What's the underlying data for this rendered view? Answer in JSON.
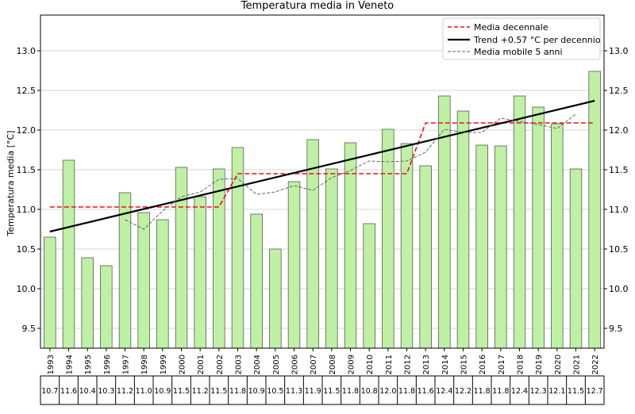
{
  "chart_data": {
    "type": "bar",
    "title": "Temperatura media in Veneto",
    "ylabel": "Temperatura media [°C]",
    "xlabel": "",
    "ylim": [
      9.25,
      13.45
    ],
    "yticks": [
      9.5,
      10.0,
      10.5,
      11.0,
      11.5,
      12.0,
      12.5,
      13.0
    ],
    "grid": "horizontal",
    "legend_position": "top-right",
    "categories": [
      "1993",
      "1994",
      "1995",
      "1996",
      "1997",
      "1998",
      "1999",
      "2000",
      "2001",
      "2002",
      "2003",
      "2004",
      "2005",
      "2006",
      "2007",
      "2008",
      "2009",
      "2010",
      "2011",
      "2012",
      "2013",
      "2014",
      "2015",
      "2016",
      "2017",
      "2018",
      "2019",
      "2020",
      "2021",
      "2022"
    ],
    "values": [
      10.65,
      11.62,
      10.39,
      10.29,
      11.21,
      10.96,
      10.87,
      11.53,
      11.16,
      11.51,
      11.78,
      10.94,
      10.5,
      11.35,
      11.88,
      11.51,
      11.84,
      10.82,
      12.01,
      11.83,
      11.55,
      12.43,
      12.24,
      11.81,
      11.8,
      12.43,
      12.29,
      12.08,
      11.51,
      12.74
    ],
    "table_labels": [
      "10.7",
      "11.6",
      "10.4",
      "10.3",
      "11.2",
      "11.0",
      "10.9",
      "11.5",
      "11.2",
      "11.5",
      "11.8",
      "10.9",
      "10.5",
      "11.3",
      "11.9",
      "11.5",
      "11.8",
      "10.8",
      "12.0",
      "11.8",
      "11.6",
      "12.4",
      "12.2",
      "11.8",
      "11.8",
      "12.4",
      "12.3",
      "12.1",
      "11.5",
      "12.7"
    ],
    "bar_color": "#bff0a4",
    "bar_edge_color": "#5a5a5a",
    "series": [
      {
        "name": "Media decennale",
        "style": "dashed",
        "color": "#ee1111",
        "points": [
          [
            "1993",
            11.03
          ],
          [
            "2002",
            11.03
          ],
          [
            "2003",
            11.45
          ],
          [
            "2012",
            11.45
          ],
          [
            "2013",
            12.09
          ],
          [
            "2022",
            12.09
          ]
        ]
      },
      {
        "name": "Trend +0.57 °C per decennio",
        "style": "solid",
        "color": "#000000",
        "points": [
          [
            "1993",
            10.72
          ],
          [
            "2022",
            12.37
          ]
        ]
      },
      {
        "name": "Media mobile 5 anni",
        "style": "dashed",
        "color": "#666666",
        "points": [
          [
            "1997",
            10.87
          ],
          [
            "1998",
            10.75
          ],
          [
            "1999",
            10.98
          ],
          [
            "2000",
            11.16
          ],
          [
            "2001",
            11.22
          ],
          [
            "2002",
            11.38
          ],
          [
            "2003",
            11.39
          ],
          [
            "2004",
            11.19
          ],
          [
            "2005",
            11.22
          ],
          [
            "2006",
            11.3
          ],
          [
            "2007",
            11.24
          ],
          [
            "2008",
            11.4
          ],
          [
            "2009",
            11.49
          ],
          [
            "2010",
            11.61
          ],
          [
            "2011",
            11.6
          ],
          [
            "2012",
            11.61
          ],
          [
            "2013",
            11.72
          ],
          [
            "2014",
            12.01
          ],
          [
            "2015",
            11.97
          ],
          [
            "2016",
            11.97
          ],
          [
            "2017",
            12.15
          ],
          [
            "2018",
            12.11
          ],
          [
            "2019",
            12.07
          ],
          [
            "2020",
            12.02
          ],
          [
            "2021",
            12.2
          ]
        ]
      }
    ]
  }
}
